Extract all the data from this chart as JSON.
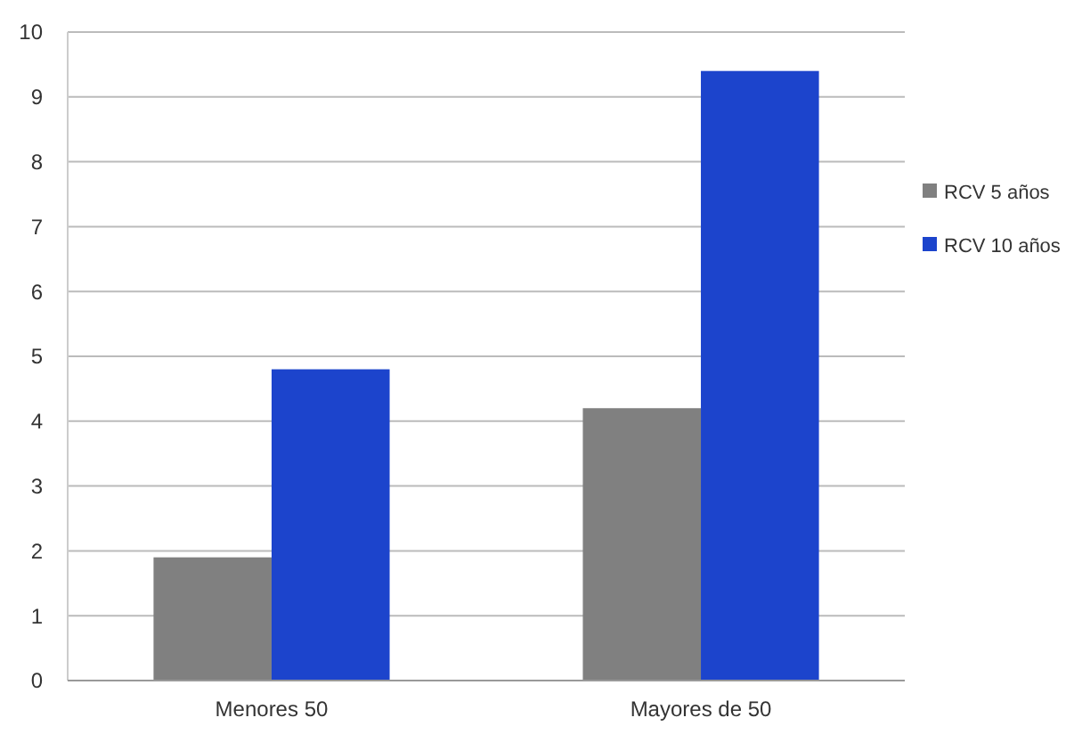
{
  "chart_data": {
    "type": "bar",
    "categories": [
      "Menores 50",
      "Mayores de 50"
    ],
    "series": [
      {
        "name": "RCV 5 años",
        "color": "#808080",
        "values": [
          1.9,
          4.2
        ]
      },
      {
        "name": "RCV 10 años",
        "color": "#1c44cc",
        "values": [
          4.8,
          9.4
        ]
      }
    ],
    "ylim": [
      0,
      10
    ],
    "yticks": [
      0,
      1,
      2,
      3,
      4,
      5,
      6,
      7,
      8,
      9,
      10
    ],
    "grid": "y",
    "legend": "right"
  }
}
